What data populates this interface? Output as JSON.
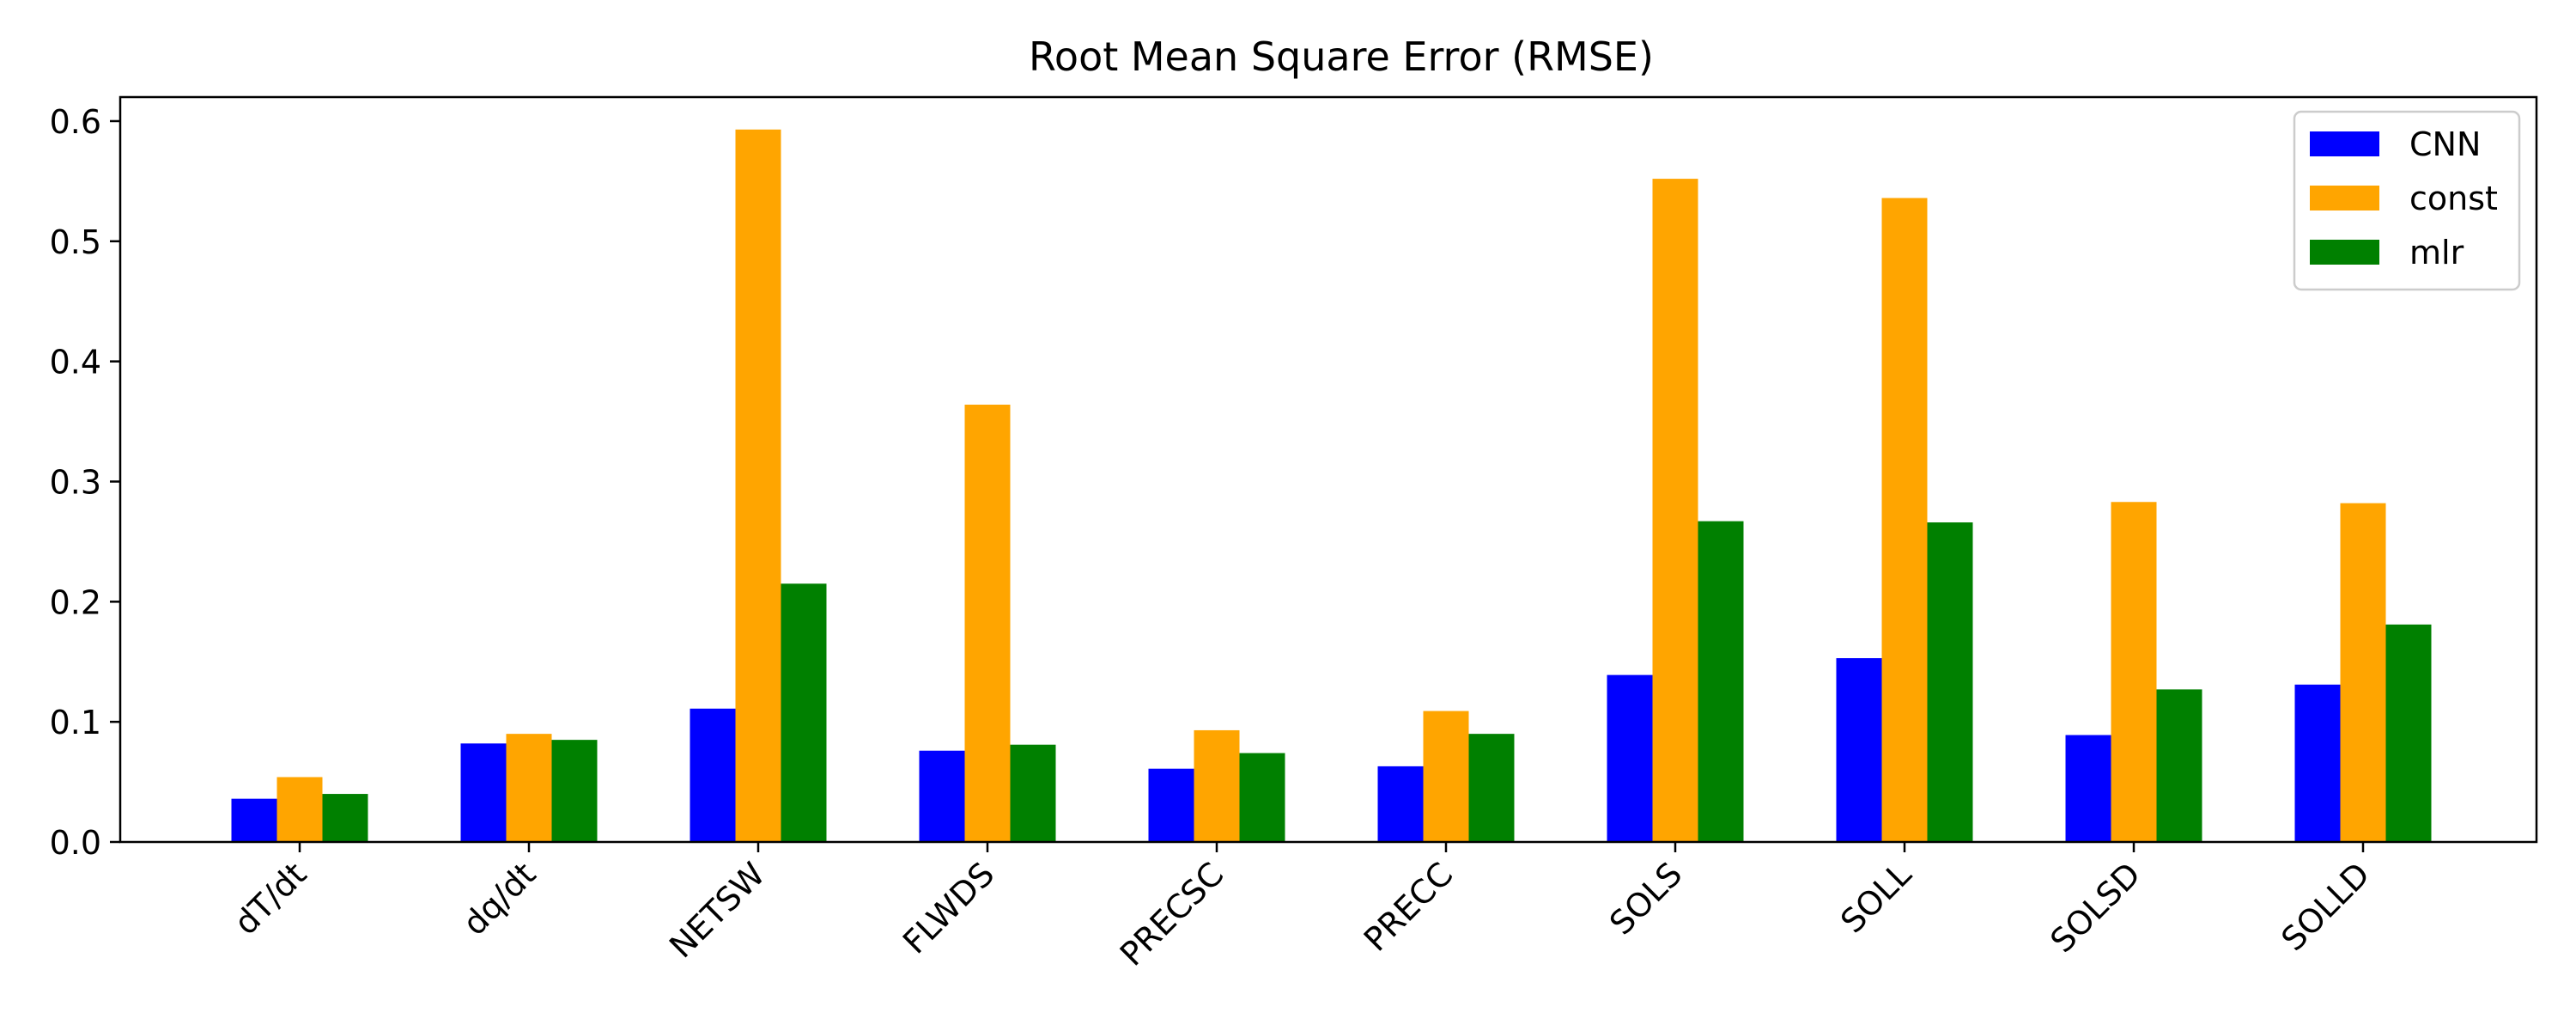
{
  "chart_data": {
    "type": "bar",
    "title": "Root Mean Square Error (RMSE)",
    "xlabel": "",
    "ylabel": "",
    "categories": [
      "dT/dt",
      "dq/dt",
      "NETSW",
      "FLWDS",
      "PRECSC",
      "PRECC",
      "SOLS",
      "SOLL",
      "SOLSD",
      "SOLLD"
    ],
    "series": [
      {
        "name": "CNN",
        "color": "#0000ff",
        "values": [
          0.036,
          0.082,
          0.111,
          0.076,
          0.061,
          0.063,
          0.139,
          0.153,
          0.089,
          0.131
        ]
      },
      {
        "name": "const",
        "color": "#ffa500",
        "values": [
          0.054,
          0.09,
          0.593,
          0.364,
          0.093,
          0.109,
          0.552,
          0.536,
          0.283,
          0.282
        ]
      },
      {
        "name": "mlr",
        "color": "#008000",
        "values": [
          0.04,
          0.085,
          0.215,
          0.081,
          0.074,
          0.09,
          0.267,
          0.266,
          0.127,
          0.181
        ]
      }
    ],
    "ylim": [
      0,
      0.62
    ],
    "yticks": [
      "0.0",
      "0.1",
      "0.2",
      "0.3",
      "0.4",
      "0.5",
      "0.6"
    ],
    "grid": false,
    "legend": "top-right"
  }
}
